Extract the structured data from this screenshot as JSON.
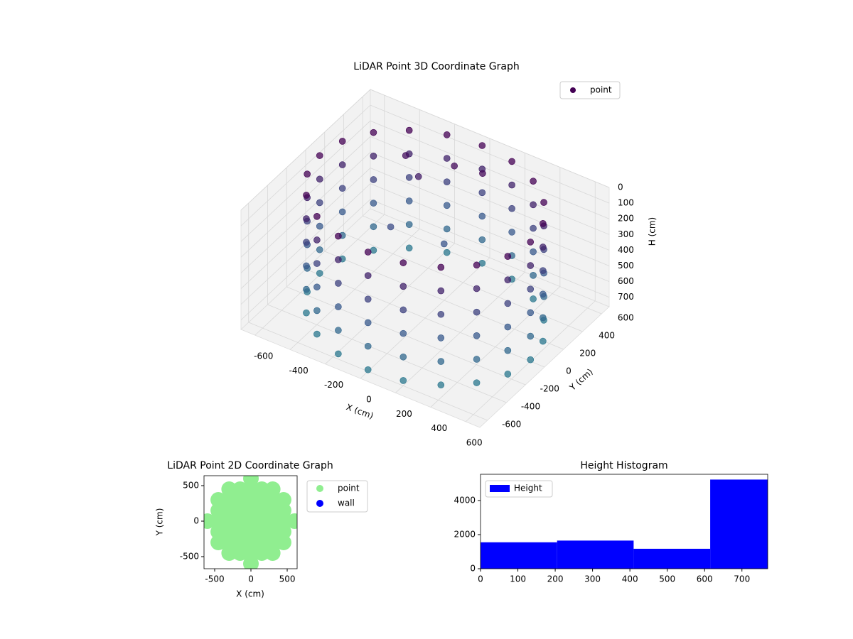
{
  "chart_data": [
    {
      "type": "scatter3d",
      "title": "LiDAR Point 3D Coordinate Graph",
      "xlabel": "X (cm)",
      "ylabel": "Y (cm)",
      "zlabel": "H (cm)",
      "xlim": [
        -680,
        680
      ],
      "ylim": [
        -680,
        680
      ],
      "zlim": [
        0,
        760
      ],
      "z_inverted": true,
      "xticks": [
        -600,
        -400,
        -200,
        0,
        200,
        400,
        600
      ],
      "yticks": [
        -600,
        -400,
        -200,
        0,
        200,
        400,
        600
      ],
      "zticks": [
        0,
        100,
        200,
        300,
        400,
        500,
        600,
        700
      ],
      "legend": "upper right",
      "grid": true,
      "series": [
        {
          "name": "point",
          "color": "#440154",
          "color_scale": [
            "#440154",
            "#3b528b",
            "#2a788e"
          ],
          "x": [
            600,
            571,
            485,
            353,
            185,
            0,
            -185,
            -353,
            -485,
            -571,
            -600,
            -571,
            -485,
            -353,
            -185,
            0,
            185,
            353,
            485,
            571,
            600,
            571,
            485,
            353,
            185,
            0,
            -185,
            -353,
            -485,
            -571,
            -600,
            -571,
            -485,
            -353,
            -185,
            0,
            185,
            353,
            485,
            571,
            600,
            571,
            485,
            353,
            185,
            0,
            -185,
            -353,
            -485,
            -571,
            -600,
            -571,
            -485,
            -353,
            -185,
            0,
            185,
            353,
            485,
            571,
            600,
            571,
            485,
            353,
            185,
            0,
            -185,
            -353,
            -485,
            -571,
            -600,
            -571,
            -485,
            -353,
            -185,
            0,
            185,
            353,
            485,
            571,
            600,
            571,
            485,
            353,
            185,
            0,
            -185,
            -353,
            -485,
            -571,
            -600,
            -571,
            -485,
            -353,
            -185,
            0,
            185,
            353,
            485,
            571,
            600,
            571,
            485,
            353,
            185,
            0,
            -185,
            -353,
            -485,
            -571,
            -600,
            -571,
            -485,
            -353,
            -185,
            0,
            185,
            353,
            485,
            571,
            -300,
            -200,
            -50,
            100,
            -250,
            0
          ],
          "y": [
            0,
            185,
            353,
            485,
            571,
            600,
            571,
            485,
            353,
            185,
            0,
            -185,
            -353,
            -485,
            -571,
            -600,
            -571,
            -485,
            -353,
            -185,
            0,
            185,
            353,
            485,
            571,
            600,
            571,
            485,
            353,
            185,
            0,
            -185,
            -353,
            -485,
            -571,
            -600,
            -571,
            -485,
            -353,
            -185,
            0,
            185,
            353,
            485,
            571,
            600,
            571,
            485,
            353,
            185,
            0,
            -185,
            -353,
            -485,
            -571,
            -600,
            -571,
            -485,
            -353,
            -185,
            0,
            185,
            353,
            485,
            571,
            600,
            571,
            485,
            353,
            185,
            0,
            -185,
            -353,
            -485,
            -571,
            -600,
            -571,
            -485,
            -353,
            -185,
            0,
            185,
            353,
            485,
            571,
            600,
            571,
            485,
            353,
            185,
            0,
            -185,
            -353,
            -485,
            -571,
            -600,
            -571,
            -485,
            -353,
            -185,
            0,
            185,
            353,
            485,
            571,
            600,
            571,
            485,
            353,
            185,
            0,
            -185,
            -353,
            -485,
            -571,
            -600,
            -571,
            -485,
            -353,
            -185,
            350,
            300,
            400,
            420,
            100,
            200
          ],
          "z": [
            0,
            0,
            0,
            0,
            0,
            0,
            0,
            0,
            0,
            0,
            0,
            0,
            0,
            0,
            0,
            0,
            0,
            0,
            0,
            0,
            150,
            150,
            150,
            150,
            150,
            150,
            150,
            150,
            150,
            150,
            150,
            150,
            150,
            150,
            150,
            150,
            150,
            150,
            150,
            150,
            300,
            300,
            300,
            300,
            300,
            300,
            300,
            300,
            300,
            300,
            300,
            300,
            300,
            300,
            300,
            300,
            300,
            300,
            300,
            300,
            450,
            450,
            450,
            450,
            450,
            450,
            450,
            450,
            450,
            450,
            450,
            450,
            450,
            450,
            450,
            450,
            450,
            450,
            450,
            450,
            600,
            600,
            600,
            600,
            600,
            600,
            600,
            600,
            600,
            600,
            600,
            600,
            600,
            600,
            600,
            600,
            600,
            600,
            600,
            600,
            750,
            750,
            750,
            750,
            750,
            750,
            750,
            750,
            750,
            750,
            750,
            750,
            750,
            750,
            750,
            750,
            750,
            750,
            750,
            750,
            60,
            120,
            40,
            30,
            350,
            400
          ]
        }
      ]
    },
    {
      "type": "scatter",
      "title": "LiDAR Point 2D Coordinate Graph",
      "xlabel": "X (cm)",
      "ylabel": "Y (cm)",
      "xlim": [
        -647,
        637
      ],
      "ylim": [
        -670,
        640
      ],
      "xticks": [
        -500,
        0,
        500
      ],
      "yticks": [
        -500,
        0,
        500
      ],
      "legend": "outside right",
      "series": [
        {
          "name": "point",
          "color": "#90ee90",
          "x": [
            0,
            0,
            0,
            0,
            0,
            0,
            0,
            0,
            0,
            150,
            150,
            150,
            150,
            150,
            150,
            150,
            -150,
            -150,
            -150,
            -150,
            -150,
            -150,
            -150,
            300,
            300,
            300,
            300,
            300,
            300,
            300,
            -300,
            -300,
            -300,
            -300,
            -300,
            -300,
            -300,
            450,
            450,
            450,
            450,
            450,
            -450,
            -450,
            -450,
            -450,
            -450,
            600,
            -600
          ],
          "y": [
            -600,
            -450,
            -300,
            -150,
            0,
            150,
            300,
            450,
            600,
            -450,
            -300,
            -150,
            0,
            150,
            300,
            450,
            -450,
            -300,
            -150,
            0,
            150,
            300,
            450,
            -450,
            -300,
            -150,
            0,
            150,
            300,
            450,
            -450,
            -300,
            -150,
            0,
            150,
            300,
            450,
            -300,
            -150,
            0,
            150,
            300,
            -300,
            -150,
            0,
            150,
            300,
            0,
            0
          ]
        },
        {
          "name": "wall",
          "color": "#0000ff",
          "x": [],
          "y": []
        }
      ]
    },
    {
      "type": "histogram",
      "title": "Height Histogram",
      "xlim": [
        0,
        769
      ],
      "ylim": [
        0,
        5540
      ],
      "xticks": [
        0,
        100,
        200,
        300,
        400,
        500,
        600,
        700
      ],
      "yticks": [
        0,
        2000,
        4000
      ],
      "legend": "upper left",
      "series": [
        {
          "name": "Height",
          "color": "#0000ff",
          "bins": [
            0,
            205,
            410,
            615,
            769
          ],
          "values": [
            1550,
            1650,
            1170,
            5230
          ]
        }
      ]
    }
  ]
}
